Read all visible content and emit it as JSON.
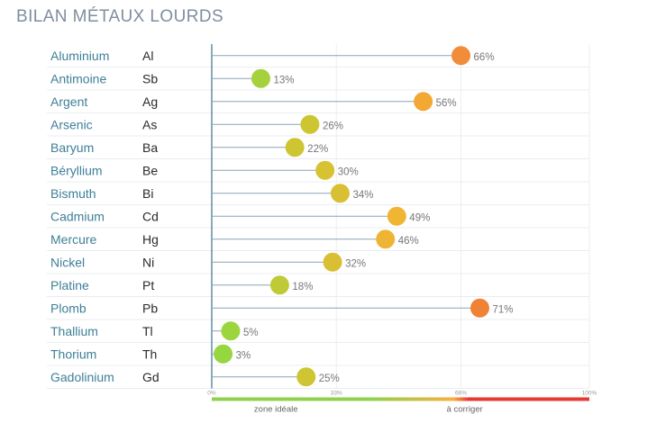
{
  "chart_data": {
    "type": "lollipop",
    "title": "BILAN MÉTAUX LOURDS",
    "unit": "%",
    "xlim": [
      0,
      100
    ],
    "x_ticks": [
      "0%",
      "33%",
      "66%",
      "100%"
    ],
    "legend": {
      "ideal_label": "zone idéale",
      "correct_label": "à corriger",
      "colors": [
        "#8fd14f",
        "#f5b041",
        "#e53935"
      ]
    },
    "colors": {
      "label": "#3e7f97",
      "symbol": "#2b2b2b",
      "value": "#777777",
      "stem": "#8aa4b5",
      "axis": "#3e6e8e",
      "row_divider": "#e8edf1",
      "grid": "#eeeeee"
    },
    "rows": [
      {
        "name": "Aluminium",
        "symbol": "Al",
        "value": 66,
        "label": "66%",
        "color": "#f08c3a"
      },
      {
        "name": "Antimoine",
        "symbol": "Sb",
        "value": 13,
        "label": "13%",
        "color": "#a5d13c"
      },
      {
        "name": "Argent",
        "symbol": "Ag",
        "value": 56,
        "label": "56%",
        "color": "#f3a834"
      },
      {
        "name": "Arsenic",
        "symbol": "As",
        "value": 26,
        "label": "26%",
        "color": "#cec533"
      },
      {
        "name": "Baryum",
        "symbol": "Ba",
        "value": 22,
        "label": "22%",
        "color": "#cec533"
      },
      {
        "name": "Béryllium",
        "symbol": "Be",
        "value": 30,
        "label": "30%",
        "color": "#d6c233"
      },
      {
        "name": "Bismuth",
        "symbol": "Bi",
        "value": 34,
        "label": "34%",
        "color": "#d9bf33"
      },
      {
        "name": "Cadmium",
        "symbol": "Cd",
        "value": 49,
        "label": "49%",
        "color": "#f1b534"
      },
      {
        "name": "Mercure",
        "symbol": "Hg",
        "value": 46,
        "label": "46%",
        "color": "#eeb534"
      },
      {
        "name": "Nickel",
        "symbol": "Ni",
        "value": 32,
        "label": "32%",
        "color": "#d9bf33"
      },
      {
        "name": "Platine",
        "symbol": "Pt",
        "value": 18,
        "label": "18%",
        "color": "#bfcb36"
      },
      {
        "name": "Plomb",
        "symbol": "Pb",
        "value": 71,
        "label": "71%",
        "color": "#f08236"
      },
      {
        "name": "Thallium",
        "symbol": "Tl",
        "value": 5,
        "label": "5%",
        "color": "#9bd63e"
      },
      {
        "name": "Thorium",
        "symbol": "Th",
        "value": 3,
        "label": "3%",
        "color": "#96d63e"
      },
      {
        "name": "Gadolinium",
        "symbol": "Gd",
        "value": 25,
        "label": "25%",
        "color": "#cec533"
      }
    ]
  }
}
